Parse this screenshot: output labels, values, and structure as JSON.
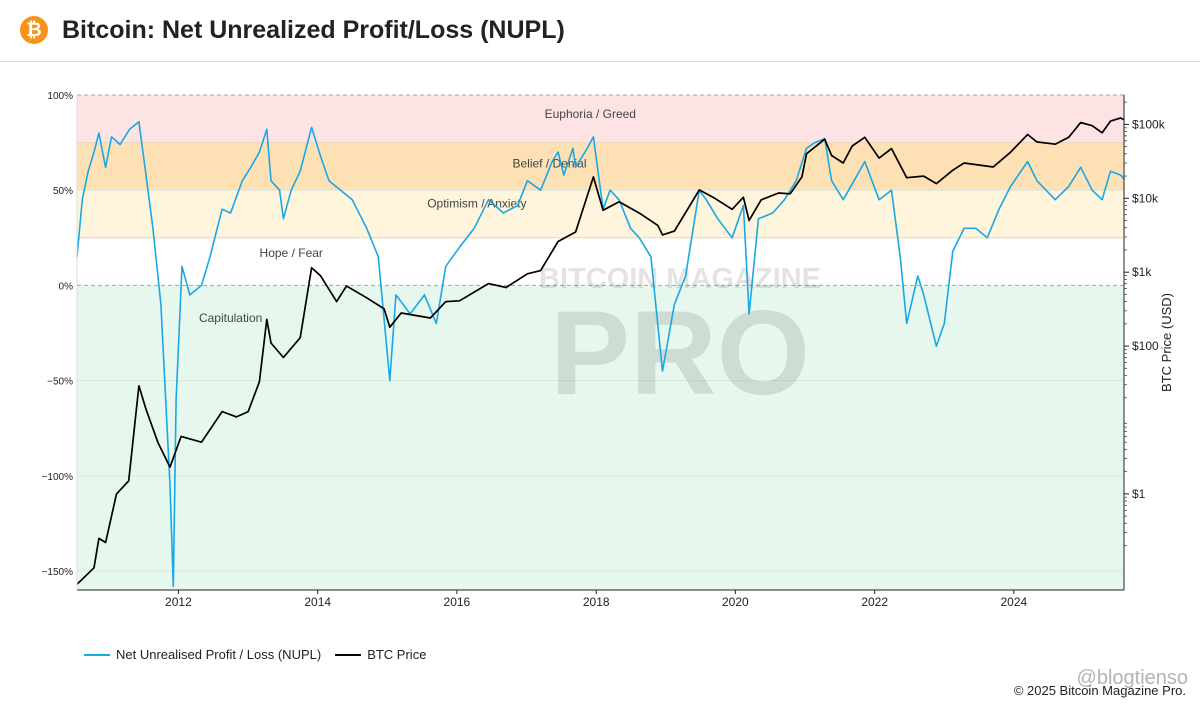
{
  "header": {
    "title": "Bitcoin: Net Unrealized Profit/Loss (NUPL)",
    "logo_icon": "bitcoin-icon",
    "logo_glyph": "₿"
  },
  "colors": {
    "euphoria": "#fde3e4",
    "belief": "#fde1b4",
    "optimism": "#fff5dc",
    "hope": "#ffffff",
    "capitulation": "#e6f8ee",
    "nupl_line": "#1aa7e6",
    "price_line": "#000000",
    "brand_orange": "#f7931a"
  },
  "watermark": {
    "line1": "BITCOIN MAGAZINE",
    "line2": "PRO",
    "handle": "@blogtienso"
  },
  "footer": {
    "copyright": "© 2025 Bitcoin Magazine Pro."
  },
  "chart_data": {
    "type": "line",
    "x_range": [
      "2010-07-18",
      "2025-08-01"
    ],
    "x_tick_labels": [
      "2012",
      "2014",
      "2016",
      "2018",
      "2020",
      "2022",
      "2024"
    ],
    "y_left": {
      "range": [
        -1.6,
        1.0
      ],
      "tick_labels": [
        "100%",
        "50%",
        "0%",
        "−50%",
        "−100%",
        "−150%"
      ],
      "tick_values": [
        1.0,
        0.5,
        0.0,
        -0.5,
        -1.0,
        -1.5
      ]
    },
    "y_right": {
      "label": "BTC Price (USD)",
      "scale": "log",
      "range": [
        0.05,
        250000
      ],
      "tick_labels": [
        "$100k",
        "$10k",
        "$1k",
        "$100",
        "$1"
      ],
      "tick_values": [
        100000,
        10000,
        1000,
        100,
        1
      ]
    },
    "zones": [
      {
        "label": "Euphoria / Greed",
        "from": 0.75,
        "to": 1.0,
        "color": "#fde3e4",
        "label_at": [
          "2017-12-01",
          0.9
        ]
      },
      {
        "label": "Belief / Denial",
        "from": 0.5,
        "to": 0.75,
        "color": "#fde1b4",
        "label_at": [
          "2017-05-01",
          0.64
        ]
      },
      {
        "label": "Optimism / Anxiety",
        "from": 0.25,
        "to": 0.5,
        "color": "#fff5dc",
        "label_at": [
          "2016-04-15",
          0.43
        ]
      },
      {
        "label": "Hope / Fear",
        "from": 0.0,
        "to": 0.25,
        "color": "#ffffff",
        "label_at": [
          "2013-08-15",
          0.17
        ]
      },
      {
        "label": "Capitulation",
        "from": -1.6,
        "to": 0.0,
        "color": "#e6f8ee",
        "label_at": [
          "2012-10-01",
          -0.17
        ]
      }
    ],
    "series": [
      {
        "name": "Net Unrealised Profit / Loss (NUPL)",
        "axis": "left",
        "points": [
          [
            "2010-07-18",
            0.15
          ],
          [
            "2010-08-15",
            0.45
          ],
          [
            "2010-09-15",
            0.6
          ],
          [
            "2010-10-15",
            0.7
          ],
          [
            "2010-11-10",
            0.8
          ],
          [
            "2010-12-15",
            0.62
          ],
          [
            "2011-01-15",
            0.78
          ],
          [
            "2011-03-01",
            0.74
          ],
          [
            "2011-04-20",
            0.82
          ],
          [
            "2011-06-08",
            0.86
          ],
          [
            "2011-07-15",
            0.58
          ],
          [
            "2011-08-20",
            0.3
          ],
          [
            "2011-10-01",
            -0.1
          ],
          [
            "2011-11-18",
            -1.05
          ],
          [
            "2011-12-05",
            -1.58
          ],
          [
            "2011-12-20",
            -0.6
          ],
          [
            "2012-01-20",
            0.1
          ],
          [
            "2012-03-01",
            -0.05
          ],
          [
            "2012-05-01",
            0.0
          ],
          [
            "2012-06-15",
            0.15
          ],
          [
            "2012-08-17",
            0.4
          ],
          [
            "2012-10-01",
            0.38
          ],
          [
            "2012-12-01",
            0.55
          ],
          [
            "2013-01-15",
            0.62
          ],
          [
            "2013-03-01",
            0.7
          ],
          [
            "2013-04-09",
            0.82
          ],
          [
            "2013-05-01",
            0.55
          ],
          [
            "2013-06-15",
            0.5
          ],
          [
            "2013-07-05",
            0.35
          ],
          [
            "2013-08-15",
            0.5
          ],
          [
            "2013-10-01",
            0.6
          ],
          [
            "2013-11-30",
            0.83
          ],
          [
            "2014-01-15",
            0.68
          ],
          [
            "2014-03-01",
            0.55
          ],
          [
            "2014-05-01",
            0.5
          ],
          [
            "2014-07-01",
            0.45
          ],
          [
            "2014-09-15",
            0.3
          ],
          [
            "2014-11-15",
            0.15
          ],
          [
            "2015-01-14",
            -0.5
          ],
          [
            "2015-02-15",
            -0.05
          ],
          [
            "2015-05-01",
            -0.15
          ],
          [
            "2015-07-15",
            -0.05
          ],
          [
            "2015-09-15",
            -0.2
          ],
          [
            "2015-11-04",
            0.1
          ],
          [
            "2016-01-15",
            0.2
          ],
          [
            "2016-04-01",
            0.3
          ],
          [
            "2016-06-15",
            0.45
          ],
          [
            "2016-09-01",
            0.38
          ],
          [
            "2016-11-15",
            0.42
          ],
          [
            "2017-01-05",
            0.55
          ],
          [
            "2017-03-15",
            0.5
          ],
          [
            "2017-05-15",
            0.65
          ],
          [
            "2017-06-15",
            0.7
          ],
          [
            "2017-07-15",
            0.58
          ],
          [
            "2017-09-01",
            0.72
          ],
          [
            "2017-09-15",
            0.62
          ],
          [
            "2017-11-15",
            0.72
          ],
          [
            "2017-12-17",
            0.78
          ],
          [
            "2018-02-06",
            0.4
          ],
          [
            "2018-03-15",
            0.5
          ],
          [
            "2018-05-01",
            0.45
          ],
          [
            "2018-06-30",
            0.3
          ],
          [
            "2018-08-15",
            0.25
          ],
          [
            "2018-10-15",
            0.15
          ],
          [
            "2018-12-15",
            -0.45
          ],
          [
            "2019-02-15",
            -0.1
          ],
          [
            "2019-04-15",
            0.05
          ],
          [
            "2019-06-26",
            0.5
          ],
          [
            "2019-08-01",
            0.45
          ],
          [
            "2019-10-01",
            0.35
          ],
          [
            "2019-12-15",
            0.25
          ],
          [
            "2020-02-12",
            0.42
          ],
          [
            "2020-03-13",
            -0.15
          ],
          [
            "2020-05-01",
            0.35
          ],
          [
            "2020-07-15",
            0.38
          ],
          [
            "2020-09-15",
            0.45
          ],
          [
            "2020-11-15",
            0.55
          ],
          [
            "2021-01-08",
            0.72
          ],
          [
            "2021-02-21",
            0.75
          ],
          [
            "2021-04-14",
            0.77
          ],
          [
            "2021-05-20",
            0.55
          ],
          [
            "2021-07-20",
            0.45
          ],
          [
            "2021-09-15",
            0.55
          ],
          [
            "2021-11-10",
            0.65
          ],
          [
            "2022-01-24",
            0.45
          ],
          [
            "2022-03-30",
            0.5
          ],
          [
            "2022-05-15",
            0.15
          ],
          [
            "2022-06-18",
            -0.2
          ],
          [
            "2022-08-15",
            0.05
          ],
          [
            "2022-09-15",
            -0.05
          ],
          [
            "2022-11-21",
            -0.32
          ],
          [
            "2023-01-01",
            -0.2
          ],
          [
            "2023-02-15",
            0.18
          ],
          [
            "2023-04-15",
            0.3
          ],
          [
            "2023-06-15",
            0.3
          ],
          [
            "2023-08-15",
            0.25
          ],
          [
            "2023-10-15",
            0.4
          ],
          [
            "2023-12-15",
            0.52
          ],
          [
            "2024-03-13",
            0.65
          ],
          [
            "2024-05-01",
            0.55
          ],
          [
            "2024-08-05",
            0.45
          ],
          [
            "2024-10-15",
            0.52
          ],
          [
            "2024-12-17",
            0.62
          ],
          [
            "2025-02-15",
            0.5
          ],
          [
            "2025-04-08",
            0.45
          ],
          [
            "2025-05-22",
            0.6
          ],
          [
            "2025-07-14",
            0.58
          ],
          [
            "2025-08-01",
            0.56
          ]
        ]
      },
      {
        "name": "BTC Price",
        "axis": "right",
        "points": [
          [
            "2010-07-18",
            0.06
          ],
          [
            "2010-08-15",
            0.07
          ],
          [
            "2010-10-15",
            0.1
          ],
          [
            "2010-11-10",
            0.25
          ],
          [
            "2010-12-15",
            0.22
          ],
          [
            "2011-02-10",
            1.0
          ],
          [
            "2011-04-15",
            1.5
          ],
          [
            "2011-06-08",
            29
          ],
          [
            "2011-07-15",
            14
          ],
          [
            "2011-09-15",
            5
          ],
          [
            "2011-11-18",
            2.3
          ],
          [
            "2012-01-15",
            6
          ],
          [
            "2012-05-01",
            5
          ],
          [
            "2012-08-17",
            13
          ],
          [
            "2012-11-01",
            11
          ],
          [
            "2013-01-01",
            13
          ],
          [
            "2013-03-01",
            33
          ],
          [
            "2013-04-09",
            230
          ],
          [
            "2013-05-01",
            110
          ],
          [
            "2013-07-05",
            70
          ],
          [
            "2013-10-01",
            130
          ],
          [
            "2013-11-30",
            1150
          ],
          [
            "2014-01-15",
            900
          ],
          [
            "2014-04-10",
            400
          ],
          [
            "2014-06-01",
            650
          ],
          [
            "2014-09-15",
            450
          ],
          [
            "2014-12-15",
            320
          ],
          [
            "2015-01-14",
            180
          ],
          [
            "2015-03-15",
            280
          ],
          [
            "2015-08-15",
            240
          ],
          [
            "2015-11-04",
            400
          ],
          [
            "2016-01-15",
            410
          ],
          [
            "2016-06-15",
            700
          ],
          [
            "2016-09-15",
            620
          ],
          [
            "2017-01-05",
            950
          ],
          [
            "2017-03-15",
            1050
          ],
          [
            "2017-06-15",
            2600
          ],
          [
            "2017-09-15",
            3500
          ],
          [
            "2017-12-17",
            19500
          ],
          [
            "2018-02-06",
            6900
          ],
          [
            "2018-05-01",
            9000
          ],
          [
            "2018-08-15",
            6300
          ],
          [
            "2018-11-20",
            4300
          ],
          [
            "2018-12-15",
            3200
          ],
          [
            "2019-02-15",
            3600
          ],
          [
            "2019-06-26",
            13000
          ],
          [
            "2019-09-15",
            10000
          ],
          [
            "2019-12-15",
            7100
          ],
          [
            "2020-02-12",
            10300
          ],
          [
            "2020-03-13",
            5000
          ],
          [
            "2020-05-15",
            9500
          ],
          [
            "2020-08-15",
            11800
          ],
          [
            "2020-10-15",
            11500
          ],
          [
            "2020-12-15",
            19500
          ],
          [
            "2021-01-08",
            40000
          ],
          [
            "2021-04-14",
            63000
          ],
          [
            "2021-05-20",
            38000
          ],
          [
            "2021-07-20",
            30000
          ],
          [
            "2021-09-05",
            51000
          ],
          [
            "2021-11-10",
            67000
          ],
          [
            "2022-01-24",
            35000
          ],
          [
            "2022-03-30",
            47000
          ],
          [
            "2022-06-18",
            19000
          ],
          [
            "2022-09-15",
            20000
          ],
          [
            "2022-11-21",
            15800
          ],
          [
            "2023-02-15",
            24000
          ],
          [
            "2023-04-15",
            30000
          ],
          [
            "2023-09-15",
            26500
          ],
          [
            "2023-12-15",
            42000
          ],
          [
            "2024-03-13",
            73000
          ],
          [
            "2024-05-01",
            58000
          ],
          [
            "2024-08-05",
            54000
          ],
          [
            "2024-10-15",
            67000
          ],
          [
            "2024-12-17",
            106000
          ],
          [
            "2025-02-15",
            96000
          ],
          [
            "2025-04-08",
            77000
          ],
          [
            "2025-05-22",
            111000
          ],
          [
            "2025-07-14",
            122000
          ],
          [
            "2025-08-01",
            116000
          ]
        ]
      }
    ]
  }
}
